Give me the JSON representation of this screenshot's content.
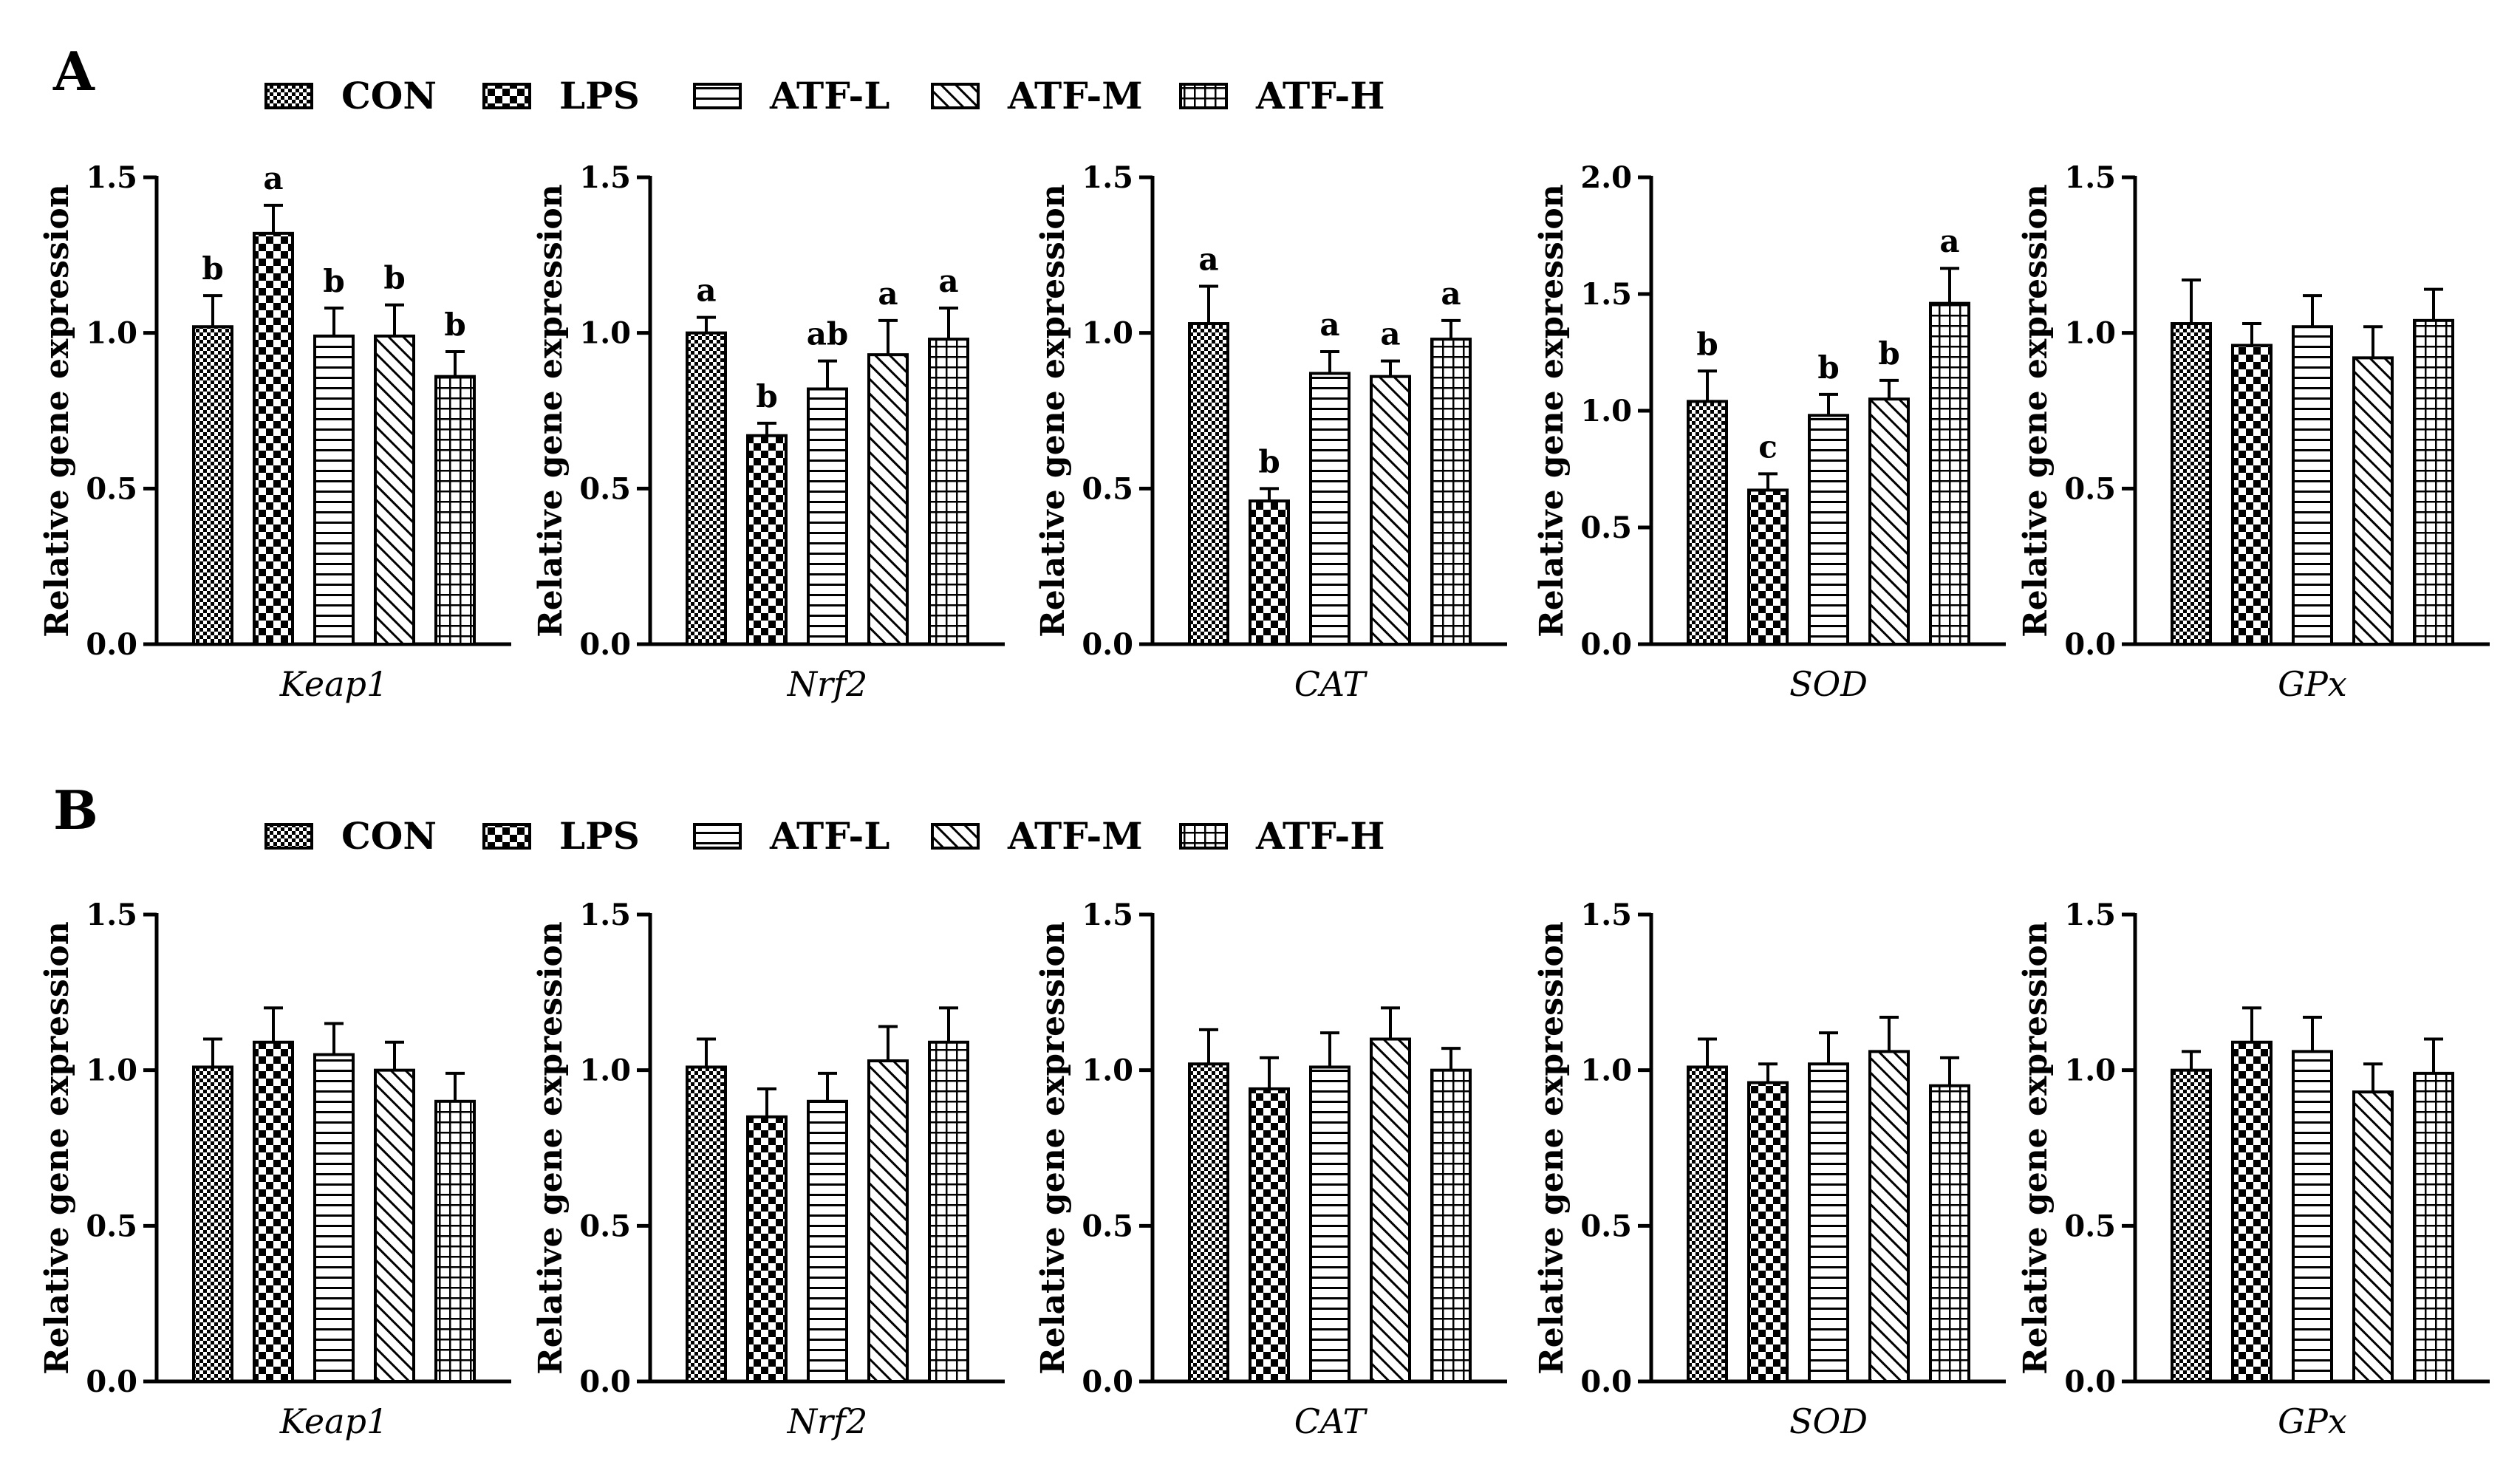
{
  "groups": [
    {
      "name": "CON",
      "pattern": "small-checker"
    },
    {
      "name": "LPS",
      "pattern": "large-checker"
    },
    {
      "name": "ATF-L",
      "pattern": "horizontal-lines"
    },
    {
      "name": "ATF-M",
      "pattern": "diagonal-lines"
    },
    {
      "name": "ATF-H",
      "pattern": "grid"
    }
  ],
  "panels": [
    {
      "label": "A",
      "legend": [
        "CON",
        "LPS",
        "ATF-L",
        "ATF-M",
        "ATF-H"
      ],
      "chart_data": [
        {
          "type": "bar",
          "gene": "Keap1",
          "ylabel": "Relative gene expression",
          "ylim": [
            0,
            1.5
          ],
          "yticks": [
            "0.0",
            "0.5",
            "1.0",
            "1.5"
          ],
          "categories": [
            "CON",
            "LPS",
            "ATF-L",
            "ATF-M",
            "ATF-H"
          ],
          "values": [
            1.02,
            1.32,
            0.99,
            0.99,
            0.86
          ],
          "errors": [
            0.1,
            0.09,
            0.09,
            0.1,
            0.08
          ],
          "letters": [
            "b",
            "a",
            "b",
            "b",
            "b"
          ]
        },
        {
          "type": "bar",
          "gene": "Nrf2",
          "ylabel": "Relative gene expression",
          "ylim": [
            0,
            1.5
          ],
          "yticks": [
            "0.0",
            "0.5",
            "1.0",
            "1.5"
          ],
          "categories": [
            "CON",
            "LPS",
            "ATF-L",
            "ATF-M",
            "ATF-H"
          ],
          "values": [
            1.0,
            0.67,
            0.82,
            0.93,
            0.98
          ],
          "errors": [
            0.05,
            0.04,
            0.09,
            0.11,
            0.1
          ],
          "letters": [
            "a",
            "b",
            "ab",
            "a",
            "a"
          ]
        },
        {
          "type": "bar",
          "gene": "CAT",
          "ylabel": "Relative gene expression",
          "ylim": [
            0,
            1.5
          ],
          "yticks": [
            "0.0",
            "0.5",
            "1.0",
            "1.5"
          ],
          "categories": [
            "CON",
            "LPS",
            "ATF-L",
            "ATF-M",
            "ATF-H"
          ],
          "values": [
            1.03,
            0.46,
            0.87,
            0.86,
            0.98
          ],
          "errors": [
            0.12,
            0.04,
            0.07,
            0.05,
            0.06
          ],
          "letters": [
            "a",
            "b",
            "a",
            "a",
            "a"
          ]
        },
        {
          "type": "bar",
          "gene": "SOD",
          "ylabel": "Relative gene expression",
          "ylim": [
            0,
            2.0
          ],
          "yticks": [
            "0.0",
            "0.5",
            "1.0",
            "1.5",
            "2.0"
          ],
          "categories": [
            "CON",
            "LPS",
            "ATF-L",
            "ATF-M",
            "ATF-H"
          ],
          "values": [
            1.04,
            0.66,
            0.98,
            1.05,
            1.46
          ],
          "errors": [
            0.13,
            0.07,
            0.09,
            0.08,
            0.15
          ],
          "letters": [
            "b",
            "c",
            "b",
            "b",
            "a"
          ]
        },
        {
          "type": "bar",
          "gene": "GPx",
          "ylabel": "Relative gene expression",
          "ylim": [
            0,
            1.5
          ],
          "yticks": [
            "0.0",
            "0.5",
            "1.0",
            "1.5"
          ],
          "categories": [
            "CON",
            "LPS",
            "ATF-L",
            "ATF-M",
            "ATF-H"
          ],
          "values": [
            1.03,
            0.96,
            1.02,
            0.92,
            1.04
          ],
          "errors": [
            0.14,
            0.07,
            0.1,
            0.1,
            0.1
          ],
          "letters": [
            "",
            "",
            "",
            "",
            ""
          ]
        }
      ]
    },
    {
      "label": "B",
      "legend": [
        "CON",
        "LPS",
        "ATF-L",
        "ATF-M",
        "ATF-H"
      ],
      "chart_data": [
        {
          "type": "bar",
          "gene": "Keap1",
          "ylabel": "Relative gene expression",
          "ylim": [
            0,
            1.5
          ],
          "yticks": [
            "0.0",
            "0.5",
            "1.0",
            "1.5"
          ],
          "categories": [
            "CON",
            "LPS",
            "ATF-L",
            "ATF-M",
            "ATF-H"
          ],
          "values": [
            1.01,
            1.09,
            1.05,
            1.0,
            0.9
          ],
          "errors": [
            0.09,
            0.11,
            0.1,
            0.09,
            0.09
          ],
          "letters": [
            "",
            "",
            "",
            "",
            ""
          ]
        },
        {
          "type": "bar",
          "gene": "Nrf2",
          "ylabel": "Relative gene expression",
          "ylim": [
            0,
            1.5
          ],
          "yticks": [
            "0.0",
            "0.5",
            "1.0",
            "1.5"
          ],
          "categories": [
            "CON",
            "LPS",
            "ATF-L",
            "ATF-M",
            "ATF-H"
          ],
          "values": [
            1.01,
            0.85,
            0.9,
            1.03,
            1.09
          ],
          "errors": [
            0.09,
            0.09,
            0.09,
            0.11,
            0.11
          ],
          "letters": [
            "",
            "",
            "",
            "",
            ""
          ]
        },
        {
          "type": "bar",
          "gene": "CAT",
          "ylabel": "Relative gene expression",
          "ylim": [
            0,
            1.5
          ],
          "yticks": [
            "0.0",
            "0.5",
            "1.0",
            "1.5"
          ],
          "categories": [
            "CON",
            "LPS",
            "ATF-L",
            "ATF-M",
            "ATF-H"
          ],
          "values": [
            1.02,
            0.94,
            1.01,
            1.1,
            1.0
          ],
          "errors": [
            0.11,
            0.1,
            0.11,
            0.1,
            0.07
          ],
          "letters": [
            "",
            "",
            "",
            "",
            ""
          ]
        },
        {
          "type": "bar",
          "gene": "SOD",
          "ylabel": "Relative gene expression",
          "ylim": [
            0,
            1.5
          ],
          "yticks": [
            "0.0",
            "0.5",
            "1.0",
            "1.5"
          ],
          "categories": [
            "CON",
            "LPS",
            "ATF-L",
            "ATF-M",
            "ATF-H"
          ],
          "values": [
            1.01,
            0.96,
            1.02,
            1.06,
            0.95
          ],
          "errors": [
            0.09,
            0.06,
            0.1,
            0.11,
            0.09
          ],
          "letters": [
            "",
            "",
            "",
            "",
            ""
          ]
        },
        {
          "type": "bar",
          "gene": "GPx",
          "ylabel": "Relative gene expression",
          "ylim": [
            0,
            1.5
          ],
          "yticks": [
            "0.0",
            "0.5",
            "1.0",
            "1.5"
          ],
          "categories": [
            "CON",
            "LPS",
            "ATF-L",
            "ATF-M",
            "ATF-H"
          ],
          "values": [
            1.0,
            1.09,
            1.06,
            0.93,
            0.99
          ],
          "errors": [
            0.06,
            0.11,
            0.11,
            0.09,
            0.11
          ],
          "letters": [
            "",
            "",
            "",
            "",
            ""
          ]
        }
      ]
    }
  ]
}
